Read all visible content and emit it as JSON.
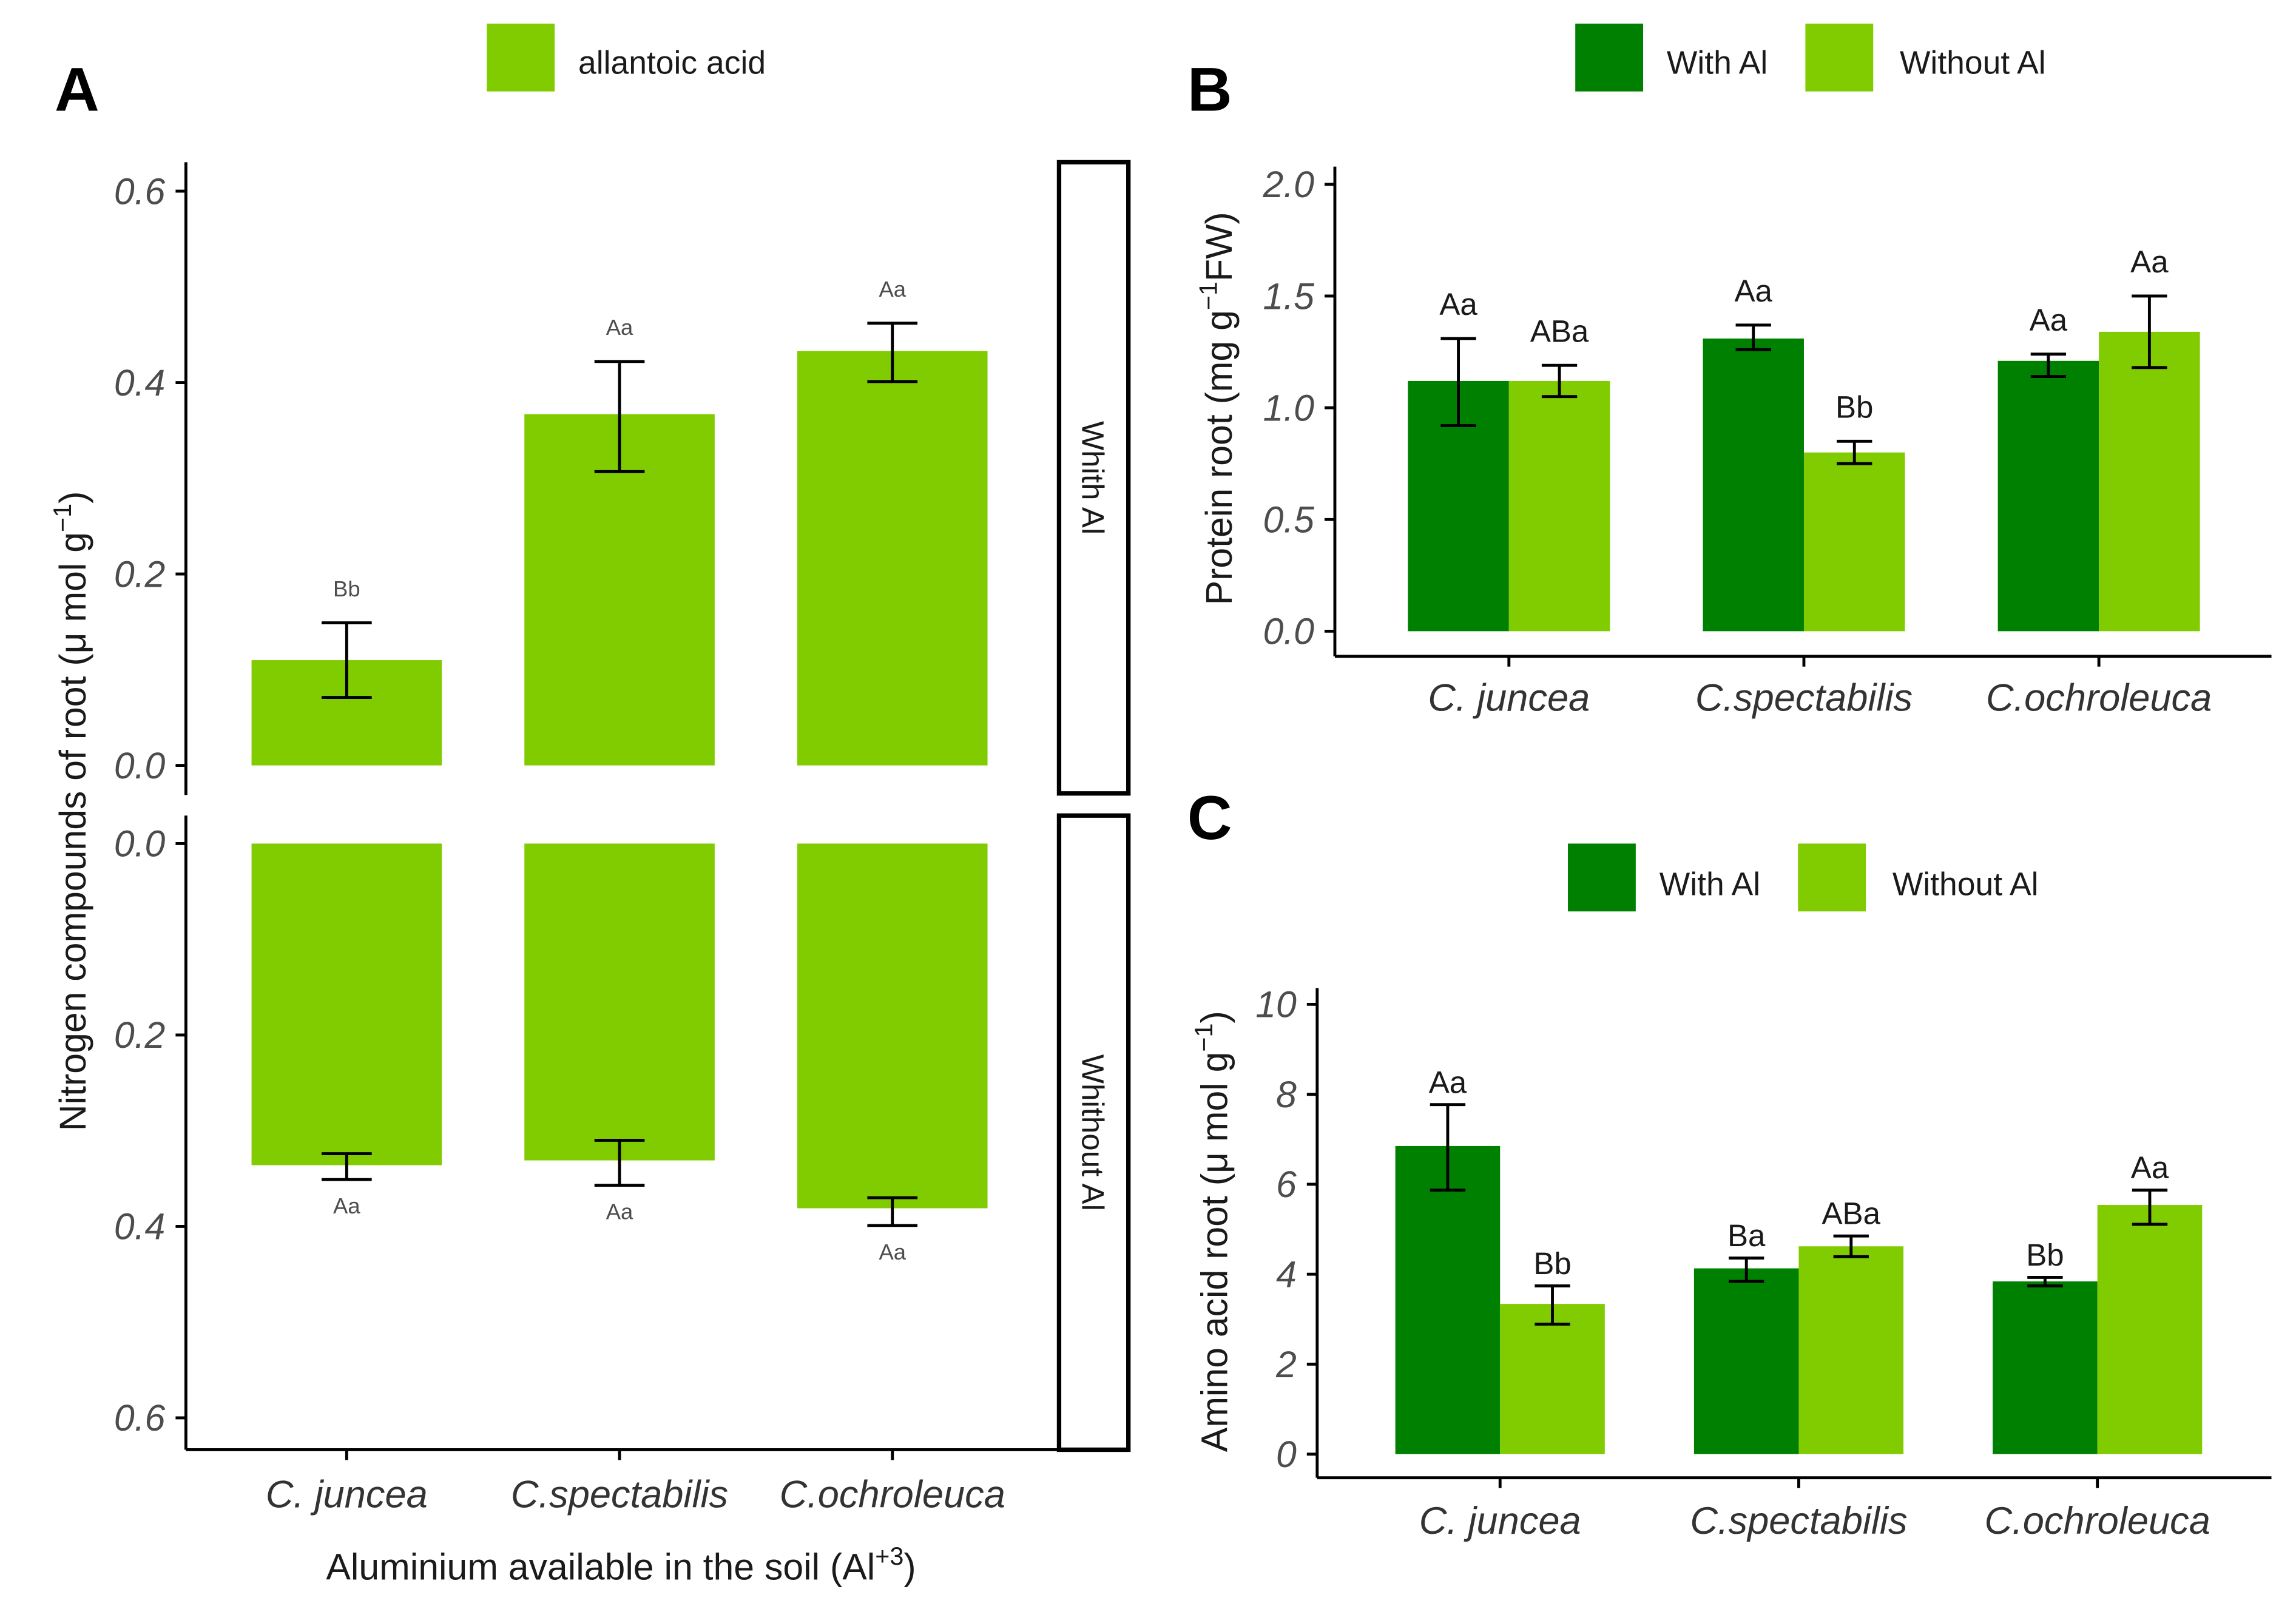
{
  "chart_data": [
    {
      "panel": "A",
      "type": "bar",
      "legend": {
        "label": "allantoic acid",
        "color": "#80cc00"
      },
      "categories": [
        "C. juncea",
        "C.spectabilis",
        "C.ochroleuca"
      ],
      "xlabel": {
        "text": "Aluminium available in the soil (Al",
        "sup": "+3",
        "tail": ")"
      },
      "ylabel": {
        "text": "Nitrogen compounds of root (μ mol g",
        "sup": "−1",
        "tail": ")"
      },
      "ylim": [
        0,
        0.6
      ],
      "yticks": [
        "0.0",
        "0.2",
        "0.4",
        "0.6"
      ],
      "grid": false,
      "facets": [
        {
          "strip": "Whith Al",
          "axis_reversed": false,
          "values": [
            0.11,
            0.367,
            0.433
          ],
          "error_low": [
            0.071,
            0.307,
            0.401
          ],
          "error_high": [
            0.149,
            0.422,
            0.462
          ],
          "letters": [
            "Bb",
            "Aa",
            "Aa"
          ]
        },
        {
          "strip": "Whithout Al",
          "axis_reversed": true,
          "values": [
            0.336,
            0.331,
            0.381
          ],
          "error_low": [
            0.324,
            0.31,
            0.37
          ],
          "error_high": [
            0.351,
            0.357,
            0.399
          ],
          "letters": [
            "Aa",
            "Aa",
            "Aa"
          ]
        }
      ]
    },
    {
      "panel": "B",
      "type": "bar",
      "categories": [
        "C. juncea",
        "C.spectabilis",
        "C.ochroleuca"
      ],
      "ylabel": {
        "text": "Protein root (mg g",
        "sup": "−1",
        "tail": "FW)"
      },
      "ylim": [
        0,
        2.0
      ],
      "yticks": [
        "0.0",
        "0.5",
        "1.0",
        "1.5",
        "2.0"
      ],
      "grid": false,
      "series": [
        {
          "name": "With Al",
          "color": "#008000",
          "values": [
            1.12,
            1.31,
            1.21
          ],
          "error_low": [
            0.92,
            1.26,
            1.14
          ],
          "error_high": [
            1.31,
            1.37,
            1.24
          ],
          "letters": [
            "Aa",
            "Aa",
            "Aa"
          ]
        },
        {
          "name": "Without Al",
          "color": "#80cc00",
          "values": [
            1.12,
            0.8,
            1.34
          ],
          "error_low": [
            1.05,
            0.75,
            1.18
          ],
          "error_high": [
            1.19,
            0.85,
            1.5
          ],
          "letters": [
            "ABa",
            "Bb",
            "Aa"
          ]
        }
      ]
    },
    {
      "panel": "C",
      "type": "bar",
      "categories": [
        "C. juncea",
        "C.spectabilis",
        "C.ochroleuca"
      ],
      "ylabel": {
        "text": "Amino acid root (μ mol g",
        "sup": "−1",
        "tail": ")"
      },
      "ylim": [
        0,
        10
      ],
      "yticks": [
        "0",
        "2",
        "4",
        "6",
        "8",
        "10"
      ],
      "grid": false,
      "series": [
        {
          "name": "With Al",
          "color": "#008000",
          "values": [
            6.85,
            4.13,
            3.84
          ],
          "error_low": [
            5.87,
            3.84,
            3.74
          ],
          "error_high": [
            7.77,
            4.36,
            3.93
          ],
          "letters": [
            "Aa",
            "Ba",
            "Bb"
          ]
        },
        {
          "name": "Without Al",
          "color": "#80cc00",
          "values": [
            3.34,
            4.62,
            5.54
          ],
          "error_low": [
            2.89,
            4.39,
            5.11
          ],
          "error_high": [
            3.74,
            4.85,
            5.87
          ],
          "letters": [
            "Bb",
            "ABa",
            "Aa"
          ]
        }
      ]
    }
  ]
}
